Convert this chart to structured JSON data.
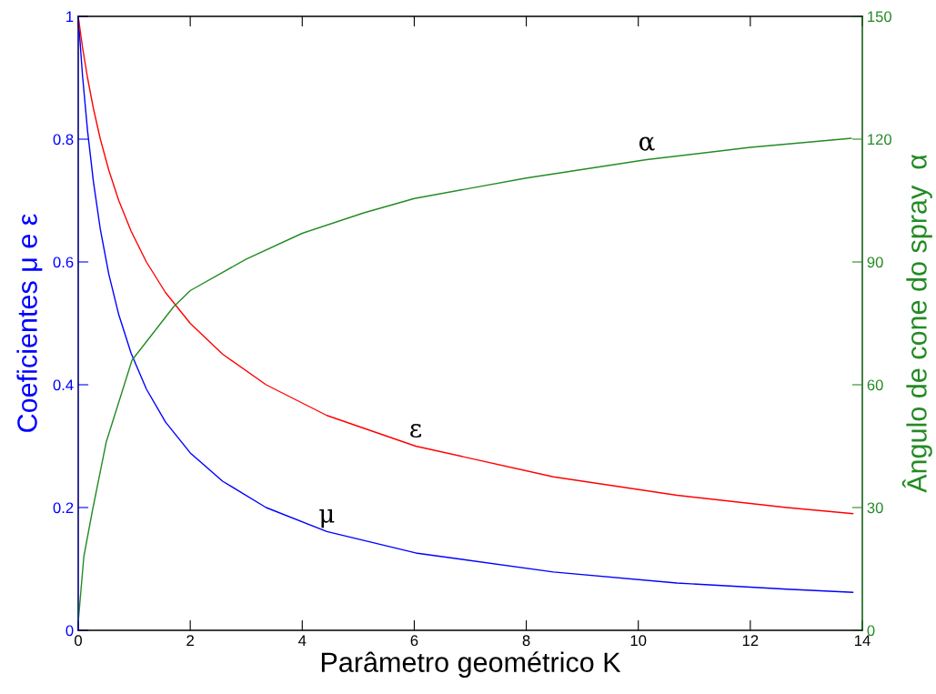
{
  "chart_data": {
    "type": "line",
    "xlabel": "Parâmetro geométrico K",
    "ylabel": "Coeficientes μ e ε",
    "y2label": "Ângulo de cone do spray  α",
    "xlim": [
      0,
      14
    ],
    "xticks": [
      0,
      2,
      4,
      6,
      8,
      10,
      12,
      14
    ],
    "ylim": [
      0,
      1
    ],
    "yticks": [
      0,
      0.2,
      0.4,
      0.6,
      0.8,
      1
    ],
    "y2lim": [
      0,
      150
    ],
    "y2ticks": [
      0,
      30,
      60,
      90,
      120,
      150
    ],
    "grid": false,
    "legend": false,
    "series": [
      {
        "color": "#0000ff",
        "x": [
          0,
          0.076,
          0.166,
          0.271,
          0.395,
          0.544,
          0.724,
          0.945,
          1.217,
          1.56,
          2.0,
          2.576,
          3.354,
          4.439,
          6.025,
          8.485,
          10.69,
          12.65,
          13.83
        ],
        "values": [
          1.0,
          0.904,
          0.814,
          0.731,
          0.653,
          0.581,
          0.514,
          0.451,
          0.393,
          0.339,
          0.289,
          0.243,
          0.2,
          0.161,
          0.126,
          0.095,
          0.077,
          0.067,
          0.062
        ]
      },
      {
        "color": "#ff0000",
        "x": [
          0,
          0.076,
          0.166,
          0.271,
          0.395,
          0.544,
          0.724,
          0.945,
          1.217,
          1.56,
          2.0,
          2.576,
          3.354,
          4.439,
          6.025,
          8.485,
          10.69,
          12.65,
          13.83
        ],
        "values": [
          1.0,
          0.95,
          0.9,
          0.85,
          0.8,
          0.75,
          0.7,
          0.65,
          0.6,
          0.55,
          0.5,
          0.45,
          0.4,
          0.35,
          0.3,
          0.25,
          0.22,
          0.2,
          0.19
        ]
      },
      {
        "color": "#238b23",
        "axis": "y2",
        "x": [
          0,
          0.1,
          0.25,
          0.5,
          0.96,
          1.7,
          2,
          3,
          4,
          5.1,
          6,
          8,
          10.15,
          12,
          13.8
        ],
        "values": [
          2,
          18,
          29,
          46,
          66,
          79,
          83,
          90.7,
          97,
          102,
          105.5,
          110.5,
          115,
          118,
          120.2
        ]
      }
    ],
    "annotations": [
      {
        "text": "μ",
        "x": 4.439,
        "y": 0.161
      },
      {
        "text": "ε",
        "x": 6.025,
        "y": 0.3
      },
      {
        "text": "α",
        "x": 10.15,
        "y": 0.767
      }
    ]
  }
}
